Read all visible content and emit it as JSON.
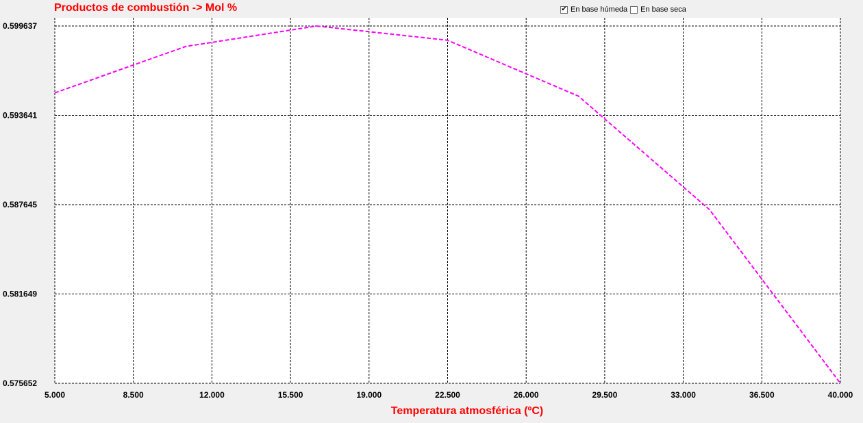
{
  "chart_data": {
    "type": "line",
    "title": "Productos de combustión -> Mol %",
    "xlabel": "Temperatura atmosférica (ºC)",
    "ylabel": "",
    "xlim": [
      5.0,
      40.0
    ],
    "ylim": [
      0.575652,
      0.599637
    ],
    "x_ticks": [
      "5.000",
      "8.500",
      "12.000",
      "15.500",
      "19.000",
      "22.500",
      "26.000",
      "29.500",
      "33.000",
      "36.500",
      "40.000"
    ],
    "x_tick_values": [
      5.0,
      8.5,
      12.0,
      15.5,
      19.0,
      22.5,
      26.0,
      29.5,
      33.0,
      36.5,
      40.0
    ],
    "y_ticks": [
      "0.599637",
      "0.593641",
      "0.587645",
      "0.581649",
      "0.575652"
    ],
    "y_tick_values": [
      0.599637,
      0.593641,
      0.587645,
      0.581649,
      0.575652
    ],
    "grid": true,
    "series": [
      {
        "color": "#ff00ff",
        "x": [
          5.0,
          10.83,
          16.67,
          22.5,
          28.33,
          34.17,
          40.0
        ],
        "y": [
          0.595148,
          0.598261,
          0.599637,
          0.598683,
          0.594927,
          0.587307,
          0.575652
        ]
      }
    ]
  },
  "toggles": [
    {
      "label": "En base húmeda",
      "checked": true
    },
    {
      "label": "En base seca",
      "checked": false
    }
  ]
}
